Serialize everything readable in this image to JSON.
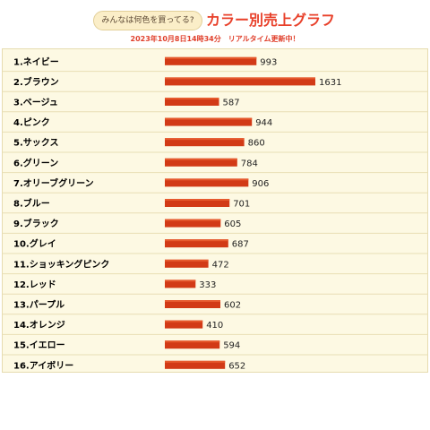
{
  "header": {
    "bubble_text": "みんなは何色を買ってる?",
    "title": "カラー別売上グラフ",
    "subtitle": "2023年10月8日14時34分　リアルタイム更新中！"
  },
  "colors": {
    "bar": "#d23a16",
    "bar_highlight": "#e65a2e",
    "row_line": "#e8deb4",
    "label": "#000000",
    "value": "#222222"
  },
  "chart_data": {
    "type": "bar",
    "orientation": "horizontal",
    "title": "カラー別売上グラフ",
    "subtitle": "2023年10月8日14時34分　リアルタイム更新中！",
    "xlabel": "",
    "ylabel": "",
    "grid": false,
    "legend": "none",
    "xlim": [
      0,
      1631
    ],
    "categories": [
      "1.ネイビー",
      "2.ブラウン",
      "3.ベージュ",
      "4.ピンク",
      "5.サックス",
      "6.グリーン",
      "7.オリーブグリーン",
      "8.ブルー",
      "9.ブラック",
      "10.グレイ",
      "11.ショッキングピンク",
      "12.レッド",
      "13.パープル",
      "14.オレンジ",
      "15.イエロー",
      "16.アイボリー"
    ],
    "values": [
      993,
      1631,
      587,
      944,
      860,
      784,
      906,
      701,
      605,
      687,
      472,
      333,
      602,
      410,
      594,
      652
    ]
  }
}
